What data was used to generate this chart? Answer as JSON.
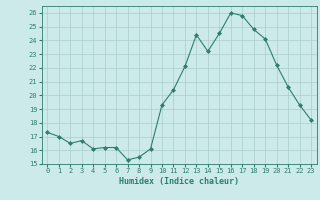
{
  "x": [
    0,
    1,
    2,
    3,
    4,
    5,
    6,
    7,
    8,
    9,
    10,
    11,
    12,
    13,
    14,
    15,
    16,
    17,
    18,
    19,
    20,
    21,
    22,
    23
  ],
  "y": [
    17.3,
    17.0,
    16.5,
    16.7,
    16.1,
    16.2,
    16.2,
    15.3,
    15.5,
    16.1,
    19.3,
    20.4,
    22.1,
    24.4,
    23.2,
    24.5,
    26.0,
    25.8,
    24.8,
    24.1,
    22.2,
    20.6,
    19.3,
    18.2
  ],
  "xlabel": "Humidex (Indice chaleur)",
  "ylabel": "",
  "ylim": [
    15,
    26.5
  ],
  "xlim": [
    -0.5,
    23.5
  ],
  "yticks": [
    15,
    16,
    17,
    18,
    19,
    20,
    21,
    22,
    23,
    24,
    25,
    26
  ],
  "xticks": [
    0,
    1,
    2,
    3,
    4,
    5,
    6,
    7,
    8,
    9,
    10,
    11,
    12,
    13,
    14,
    15,
    16,
    17,
    18,
    19,
    20,
    21,
    22,
    23
  ],
  "line_color": "#2e7d6e",
  "bg_color": "#cceaea",
  "grid_color": "#aacccc",
  "font_color": "#2e7d6e",
  "tick_labelsize": 5.0,
  "xlabel_fontsize": 6.0
}
